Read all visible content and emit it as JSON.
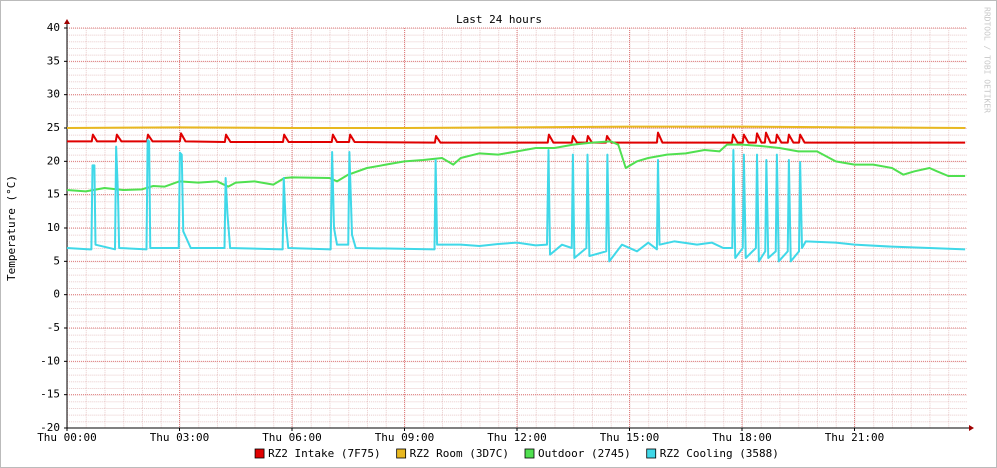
{
  "chart_data": {
    "type": "line",
    "title": "Last 24 hours",
    "y_label": "Temperature (°C)",
    "watermark": "RRDTOOL / TOBI OETIKER",
    "xlim": [
      0,
      24
    ],
    "xticks": [
      {
        "value": 0,
        "label": "Thu 00:00"
      },
      {
        "value": 3,
        "label": "Thu 03:00"
      },
      {
        "value": 6,
        "label": "Thu 06:00"
      },
      {
        "value": 9,
        "label": "Thu 09:00"
      },
      {
        "value": 12,
        "label": "Thu 12:00"
      },
      {
        "value": 15,
        "label": "Thu 15:00"
      },
      {
        "value": 18,
        "label": "Thu 18:00"
      },
      {
        "value": 21,
        "label": "Thu 21:00"
      }
    ],
    "ylim": [
      -20,
      40
    ],
    "yticks": [
      -20,
      -15,
      -10,
      -5,
      0,
      5,
      10,
      15,
      20,
      25,
      30,
      35,
      40
    ],
    "grid": true,
    "legend": "bottom",
    "series": [
      {
        "name": "RZ2 Intake (7F75)",
        "color": "#e00000",
        "x": [
          0,
          0.66,
          0.69,
          0.8,
          1.3,
          1.33,
          1.45,
          2.13,
          2.16,
          2.28,
          3.01,
          3.04,
          3.16,
          4.21,
          4.24,
          4.36,
          5.76,
          5.79,
          5.91,
          7.06,
          7.09,
          7.2,
          7.52,
          7.55,
          7.67,
          9.81,
          9.84,
          9.96,
          12.82,
          12.85,
          12.97,
          13.46,
          13.49,
          13.6,
          13.86,
          13.89,
          14,
          14.37,
          14.4,
          14.52,
          15.73,
          15.76,
          15.88,
          17.73,
          17.76,
          17.88,
          18.02,
          18.05,
          18.17,
          18.37,
          18.4,
          18.52,
          18.61,
          18.64,
          18.76,
          18.9,
          18.93,
          19.05,
          19.22,
          19.25,
          19.37,
          19.52,
          19.55,
          19.67,
          23.95
        ],
        "values": [
          23,
          23,
          24,
          23,
          23,
          24,
          23,
          23,
          24,
          23,
          23,
          24.2,
          23,
          22.9,
          24,
          22.9,
          22.9,
          24,
          22.9,
          22.9,
          24,
          22.9,
          22.9,
          24,
          22.9,
          22.8,
          23.8,
          22.8,
          22.8,
          24,
          22.8,
          22.8,
          23.8,
          22.8,
          22.8,
          23.8,
          22.8,
          22.8,
          23.8,
          22.8,
          22.8,
          24.3,
          22.8,
          22.8,
          24,
          22.8,
          22.8,
          24,
          22.8,
          22.8,
          24.2,
          22.8,
          22.8,
          24.3,
          22.8,
          22.8,
          24,
          22.8,
          22.8,
          24,
          22.8,
          22.8,
          24,
          22.8,
          22.8
        ]
      },
      {
        "name": "RZ2 Room (3D7C)",
        "color": "#e8b820",
        "x": [
          0,
          3,
          6,
          9,
          12,
          15,
          18,
          21,
          23.95
        ],
        "values": [
          25,
          25.1,
          25,
          25,
          25.1,
          25.2,
          25.2,
          25.1,
          25
        ]
      },
      {
        "name": "Outdoor (2745)",
        "color": "#50e050",
        "x": [
          0,
          0.5,
          1,
          1.5,
          2,
          2.3,
          2.6,
          3,
          3.5,
          4,
          4.3,
          4.5,
          5,
          5.5,
          5.8,
          6,
          7,
          7.2,
          7.5,
          8,
          8.5,
          9,
          9.5,
          10,
          10.3,
          10.5,
          11,
          11.5,
          12,
          12.5,
          13,
          13.5,
          14,
          14.5,
          14.7,
          14.9,
          15.2,
          15.5,
          16,
          16.5,
          17,
          17.4,
          17.6,
          18,
          18.5,
          19,
          19.5,
          20,
          20.5,
          21,
          21.5,
          22,
          22.3,
          22.6,
          23,
          23.2,
          23.5,
          23.95
        ],
        "values": [
          15.7,
          15.5,
          16,
          15.7,
          15.8,
          16.3,
          16.2,
          17,
          16.8,
          17,
          16.2,
          16.8,
          17,
          16.5,
          17.5,
          17.6,
          17.5,
          17,
          18,
          19,
          19.5,
          20,
          20.2,
          20.5,
          19.5,
          20.5,
          21.2,
          21,
          21.5,
          22,
          22,
          22.5,
          22.8,
          23,
          22.5,
          19,
          20,
          20.5,
          21,
          21.2,
          21.7,
          21.5,
          22.5,
          22.5,
          22.3,
          22,
          21.5,
          21.5,
          20,
          19.5,
          19.5,
          19,
          18,
          18.5,
          19,
          18.5,
          17.8,
          17.8
        ]
      },
      {
        "name": "RZ2 Cooling (3588)",
        "color": "#40d8e8",
        "x": [
          0,
          0.6,
          0.65,
          0.68,
          0.73,
          0.76,
          1.28,
          1.31,
          1.36,
          1.39,
          2.12,
          2.15,
          2.19,
          2.22,
          2.98,
          3.01,
          3.06,
          3.1,
          3.3,
          4.2,
          4.23,
          4.28,
          4.35,
          5.75,
          5.78,
          5.83,
          5.9,
          7.03,
          7.07,
          7.12,
          7.2,
          7.5,
          7.53,
          7.6,
          7.7,
          9.8,
          9.83,
          9.87,
          10.5,
          11,
          11.5,
          12,
          12.5,
          12.8,
          12.84,
          12.88,
          13.2,
          13.46,
          13.49,
          13.53,
          13.85,
          13.88,
          13.93,
          14.38,
          14.41,
          14.46,
          14.8,
          15.2,
          15.5,
          15.73,
          15.76,
          15.8,
          16.2,
          16.8,
          17.2,
          17.5,
          17.74,
          17.77,
          17.82,
          18.02,
          18.05,
          18.1,
          18.37,
          18.4,
          18.45,
          18.62,
          18.65,
          18.7,
          18.9,
          18.93,
          18.98,
          19.22,
          19.25,
          19.3,
          19.52,
          19.55,
          19.6,
          19.7,
          20.5,
          21,
          22,
          23,
          23.95
        ],
        "values": [
          7,
          6.8,
          6.8,
          19.4,
          19.4,
          7.5,
          6.8,
          22.2,
          15,
          7,
          6.8,
          23.2,
          23,
          7,
          7,
          21.3,
          21,
          9.5,
          7,
          7,
          17.5,
          12,
          7,
          6.8,
          17.5,
          11,
          7,
          6.8,
          21.4,
          10,
          7.5,
          7.5,
          21.4,
          9,
          7,
          6.8,
          20.2,
          7.5,
          7.5,
          7.3,
          7.6,
          7.8,
          7.4,
          7.5,
          21.7,
          6,
          7.5,
          7,
          21,
          5.5,
          7,
          21,
          5.8,
          6.5,
          21,
          5,
          7.5,
          6.5,
          7.8,
          6.8,
          20.2,
          7.5,
          8,
          7.5,
          7.8,
          7,
          7,
          21.7,
          5.5,
          7,
          21,
          5.5,
          7,
          21,
          5,
          6.5,
          20.2,
          5.5,
          6.5,
          21,
          5,
          6.5,
          20.2,
          5,
          6.5,
          19.9,
          7,
          8,
          7.8,
          7.5,
          7.2,
          7,
          6.8
        ]
      }
    ]
  }
}
